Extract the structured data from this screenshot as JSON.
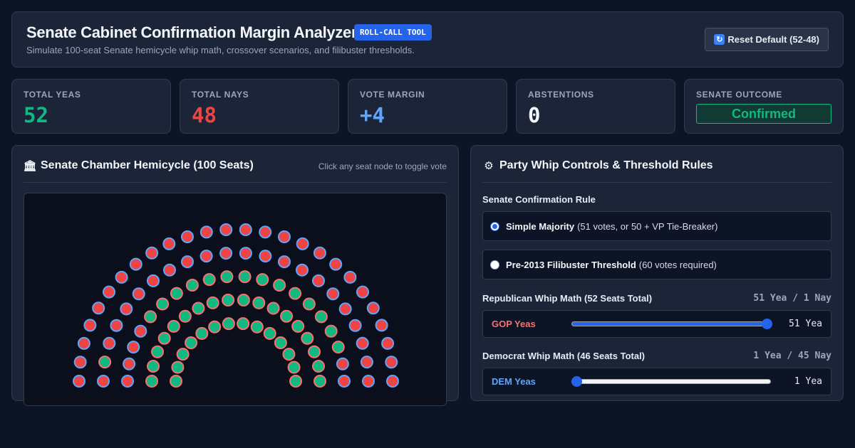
{
  "header": {
    "title": "Senate Cabinet Confirmation Margin Analyzer",
    "badge": "ROLL-CALL TOOL",
    "subtitle": "Simulate 100-seat Senate hemicycle whip math, crossover scenarios, and filibuster thresholds.",
    "reset_label": "Reset Default (52-48)",
    "reset_icon": "refresh-icon"
  },
  "stats": [
    {
      "label": "TOTAL YEAS",
      "value": "52",
      "color": "#10b981"
    },
    {
      "label": "TOTAL NAYS",
      "value": "48",
      "color": "#ef4444"
    },
    {
      "label": "VOTE MARGIN",
      "value": "+4",
      "color": "#60a5fa"
    },
    {
      "label": "ABSTENTIONS",
      "value": "0",
      "color": "#f3f6fb"
    }
  ],
  "outcome": {
    "label": "SENATE OUTCOME",
    "value": "Confirmed",
    "color": "#10b981"
  },
  "chamber": {
    "icon": "classical-building-icon",
    "title": "Senate Chamber Hemicycle (100 Seats)",
    "hint": "Click any seat node to toggle vote",
    "colors": {
      "yea": "#10b981",
      "nay": "#ef4444",
      "gop_ring": "#f87171",
      "dem_ring": "#60a5fa"
    }
  },
  "controls": {
    "icon": "gear-icon",
    "title": "Party Whip Controls & Threshold Rules",
    "rule_label": "Senate Confirmation Rule",
    "rules": [
      {
        "strong": "Simple Majority",
        "rest": "(51 votes, or 50 + VP Tie-Breaker)",
        "checked": true
      },
      {
        "strong": "Pre-2013 Filibuster Threshold",
        "rest": "(60 votes required)",
        "checked": false
      }
    ],
    "gop": {
      "title": "Republican Whip Math (52 Seats Total)",
      "math": "51 Yea / 1 Nay",
      "label": "GOP Yeas",
      "value_text": "51 Yea",
      "yeas": 51,
      "max": 52,
      "color": "#f87171"
    },
    "dem": {
      "title": "Democrat Whip Math (46 Seats Total)",
      "math": "1 Yea / 45 Nay",
      "label": "DEM Yeas",
      "value_text": "1 Yea",
      "yeas": 1,
      "max": 46,
      "color": "#60a5fa"
    }
  }
}
